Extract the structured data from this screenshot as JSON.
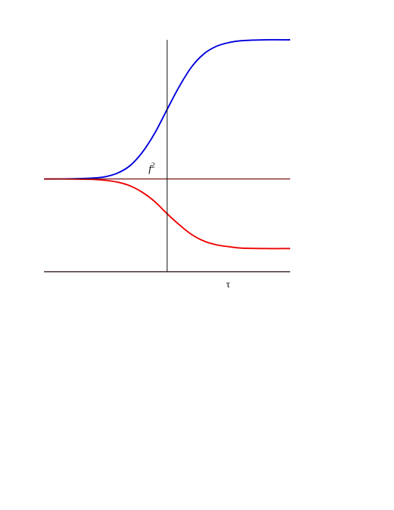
{
  "chart_data": {
    "type": "line",
    "title": "",
    "xlabel": "τ",
    "ylabel": "f",
    "ylabel_superscript": "2",
    "xlim": [
      -5,
      5
    ],
    "ylim": [
      -2,
      3
    ],
    "grid": false,
    "reference_line": {
      "y": 0,
      "color": "#7a1a1a"
    },
    "axis_color": "#3a2020",
    "series": [
      {
        "color": "#0000dd",
        "x": [
          -5,
          -4,
          -3,
          -2.5,
          -2,
          -1.5,
          -1,
          -0.5,
          0,
          0.5,
          1,
          1.5,
          2,
          2.5,
          3,
          4,
          5
        ],
        "y": [
          0.0,
          0.003,
          0.02,
          0.05,
          0.13,
          0.29,
          0.58,
          0.99,
          1.5,
          2.0,
          2.42,
          2.7,
          2.86,
          2.94,
          2.98,
          3.0,
          3.0
        ]
      },
      {
        "color": "#ee0000",
        "x": [
          -5,
          -4,
          -3,
          -2.5,
          -2,
          -1.5,
          -1,
          -0.5,
          0,
          0.5,
          1,
          1.5,
          2,
          2.5,
          3,
          4,
          5
        ],
        "y": [
          0.0,
          -0.002,
          -0.01,
          -0.03,
          -0.07,
          -0.15,
          -0.29,
          -0.49,
          -0.75,
          -0.99,
          -1.2,
          -1.34,
          -1.42,
          -1.46,
          -1.49,
          -1.5,
          -1.5
        ]
      }
    ]
  }
}
